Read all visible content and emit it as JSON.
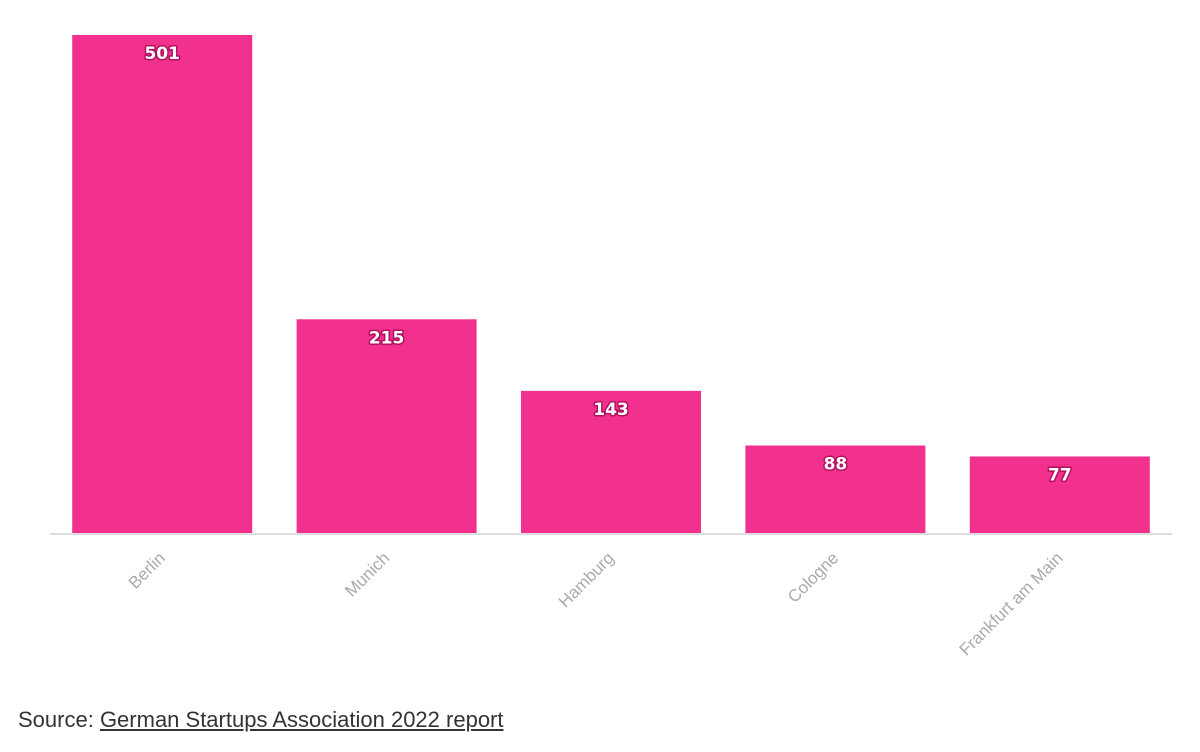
{
  "chart_data": {
    "type": "bar",
    "categories": [
      "Berlin",
      "Munich",
      "Hamburg",
      "Cologne",
      "Frankfurt am Main"
    ],
    "values": [
      501,
      215,
      143,
      88,
      77
    ],
    "title": "",
    "xlabel": "",
    "ylabel": "",
    "ylim": [
      0,
      501
    ],
    "grid": false,
    "legend": "none",
    "bar_color": "#f2318f",
    "data_labels": "inside-top"
  },
  "source": {
    "prefix": "Source: ",
    "link_text": "German Startups Association 2022 report"
  }
}
